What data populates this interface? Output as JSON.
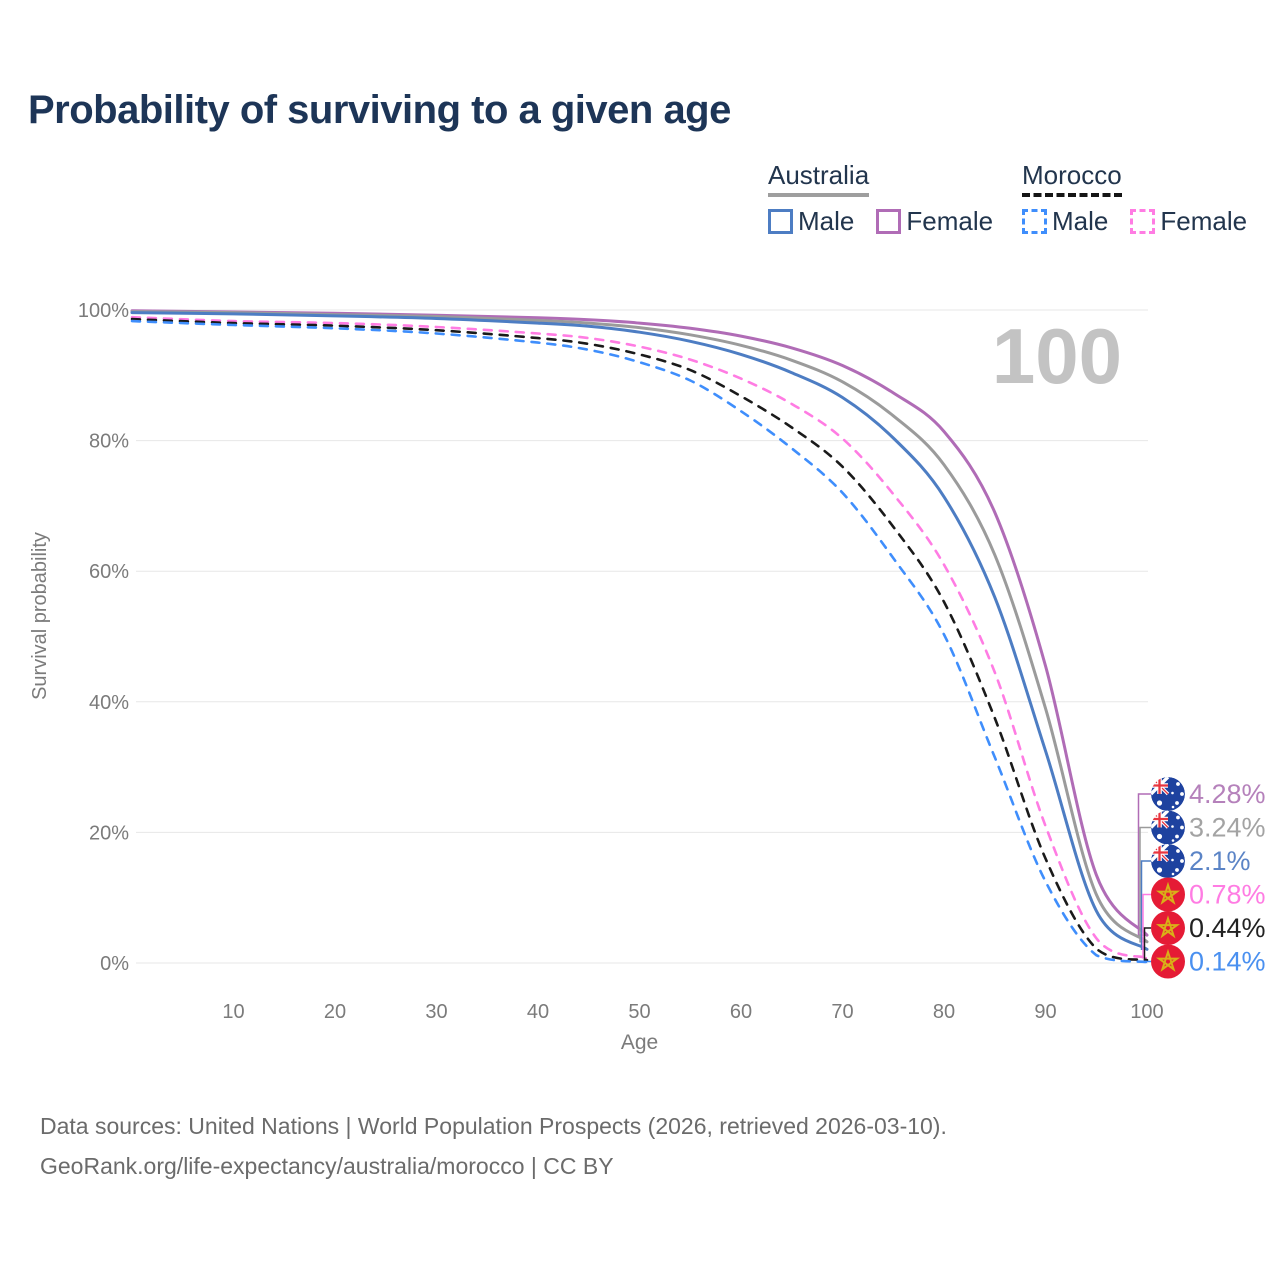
{
  "title": "Probability of surviving to a given age",
  "legend": {
    "groups": [
      {
        "name": "Australia",
        "line_style": "solid",
        "underline_color": "#9e9e9e",
        "items": [
          {
            "label": "Male",
            "color": "#4d7dc3"
          },
          {
            "label": "Female",
            "color": "#b06cb6"
          }
        ]
      },
      {
        "name": "Morocco",
        "line_style": "dashed",
        "underline_color": "#151515",
        "items": [
          {
            "label": "Male",
            "color": "#3f8efc"
          },
          {
            "label": "Female",
            "color": "#ff7ce3"
          }
        ]
      }
    ]
  },
  "chart_data": {
    "type": "line",
    "title": "Probability of surviving to a given age",
    "xlabel": "Age",
    "ylabel": "Survival probability",
    "xlim": [
      0,
      100
    ],
    "ylim": [
      0,
      100
    ],
    "grid": "horizontal",
    "legend_position": "top-right",
    "watermark": "100",
    "x_ticks": [
      10,
      20,
      30,
      40,
      50,
      60,
      70,
      80,
      90,
      100
    ],
    "y_ticks": [
      {
        "value": 0,
        "label": "0%"
      },
      {
        "value": 20,
        "label": "20%"
      },
      {
        "value": 40,
        "label": "40%"
      },
      {
        "value": 60,
        "label": "60%"
      },
      {
        "value": 80,
        "label": "80%"
      },
      {
        "value": 100,
        "label": "100%"
      }
    ],
    "x": [
      0,
      10,
      20,
      30,
      40,
      45,
      50,
      55,
      60,
      65,
      70,
      75,
      80,
      85,
      90,
      95,
      100
    ],
    "series": [
      {
        "id": "australia-female",
        "name": "Australia Female",
        "country": "Australia",
        "sex": "Female",
        "color": "#b06cb6",
        "line_style": "solid",
        "flag": "australia",
        "end_label": "4.28%",
        "end_label_color": "#b581bb",
        "values": [
          99.9,
          99.7,
          99.5,
          99.2,
          98.8,
          98.5,
          98.0,
          97.2,
          96.0,
          94.2,
          91.5,
          87.3,
          81.4,
          69.0,
          45.5,
          13.5,
          4.28
        ]
      },
      {
        "id": "australia-both-sexes",
        "name": "Australia Both sexes",
        "country": "Australia",
        "sex": "Both",
        "color": "#9b9b9b",
        "line_style": "solid",
        "flag": "australia",
        "end_label": "3.24%",
        "end_label_color": "#a3a3a3",
        "values": [
          99.75,
          99.6,
          99.3,
          99.0,
          98.4,
          98.0,
          97.3,
          96.2,
          94.6,
          92.3,
          89.0,
          83.8,
          76.3,
          62.5,
          39.0,
          10.5,
          3.24
        ]
      },
      {
        "id": "australia-male",
        "name": "Australia Male",
        "country": "Australia",
        "sex": "Male",
        "color": "#4d7dc3",
        "line_style": "solid",
        "flag": "australia",
        "end_label": "2.1%",
        "end_label_color": "#5b84c6",
        "values": [
          99.6,
          99.4,
          99.1,
          98.7,
          98.0,
          97.5,
          96.6,
          95.2,
          93.2,
          90.4,
          86.6,
          80.4,
          71.4,
          56.0,
          32.5,
          8.0,
          2.1
        ]
      },
      {
        "id": "morocco-female",
        "name": "Morocco Female",
        "country": "Morocco",
        "sex": "Female",
        "color": "#ff7ce3",
        "line_style": "dashed",
        "flag": "morocco",
        "end_label": "0.78%",
        "end_label_color": "#ff7ce3",
        "values": [
          98.9,
          98.3,
          98.0,
          97.4,
          96.4,
          95.7,
          94.4,
          92.4,
          89.5,
          85.6,
          80.3,
          71.8,
          61.0,
          44.5,
          21.0,
          3.8,
          0.78
        ]
      },
      {
        "id": "morocco-both-sexes",
        "name": "Morocco Both sexes",
        "country": "Morocco",
        "sex": "Both",
        "color": "#1a1a1a",
        "line_style": "dashed",
        "flag": "morocco",
        "end_label": "0.44%",
        "end_label_color": "#222222",
        "values": [
          98.6,
          98.0,
          97.6,
          96.9,
          95.7,
          94.8,
          93.2,
          90.8,
          86.8,
          82.0,
          76.0,
          66.8,
          55.3,
          37.5,
          16.0,
          2.2,
          0.44
        ]
      },
      {
        "id": "morocco-male",
        "name": "Morocco Male",
        "country": "Morocco",
        "sex": "Male",
        "color": "#3f8efc",
        "line_style": "dashed",
        "flag": "morocco",
        "end_label": "0.14%",
        "end_label_color": "#4a90f0",
        "values": [
          98.3,
          97.7,
          97.2,
          96.4,
          95.0,
          93.9,
          92.0,
          89.2,
          84.5,
          78.8,
          72.0,
          62.0,
          50.3,
          31.5,
          12.5,
          1.2,
          0.14
        ]
      }
    ]
  },
  "footer": {
    "line1": "Data sources: United Nations | World Population Prospects (2026, retrieved 2026-03-10).",
    "line2": "GeoRank.org/life-expectancy/australia/morocco | CC BY"
  }
}
